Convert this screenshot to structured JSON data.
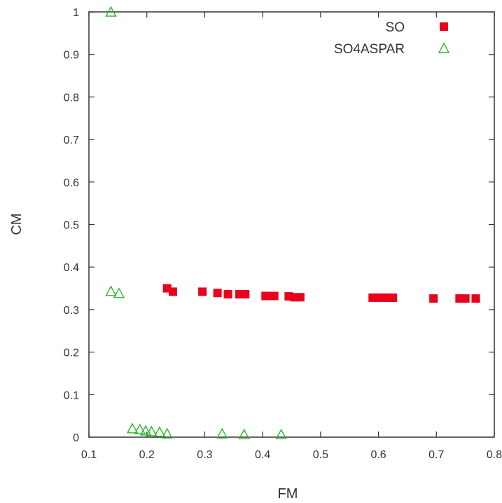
{
  "chart_data": {
    "type": "scatter",
    "xlabel": "FM",
    "ylabel": "CM",
    "xlim": [
      0.1,
      0.8
    ],
    "ylim": [
      0,
      1
    ],
    "x_ticks": [
      "0.1",
      "0.2",
      "0.3",
      "0.4",
      "0.5",
      "0.6",
      "0.7",
      "0.8"
    ],
    "y_ticks": [
      "0",
      "0.1",
      "0.2",
      "0.3",
      "0.4",
      "0.5",
      "0.6",
      "0.7",
      "0.8",
      "0.9",
      "1"
    ],
    "grid": false,
    "legend_position": "top-right",
    "series": [
      {
        "name": "SO",
        "marker": "filled-square",
        "color": "#e8001c",
        "points": [
          [
            0.235,
            0.35
          ],
          [
            0.245,
            0.342
          ],
          [
            0.296,
            0.342
          ],
          [
            0.322,
            0.339
          ],
          [
            0.34,
            0.336
          ],
          [
            0.36,
            0.336
          ],
          [
            0.37,
            0.336
          ],
          [
            0.405,
            0.332
          ],
          [
            0.41,
            0.332
          ],
          [
            0.42,
            0.332
          ],
          [
            0.445,
            0.331
          ],
          [
            0.455,
            0.329
          ],
          [
            0.465,
            0.329
          ],
          [
            0.59,
            0.328
          ],
          [
            0.6,
            0.328
          ],
          [
            0.61,
            0.328
          ],
          [
            0.615,
            0.328
          ],
          [
            0.625,
            0.328
          ],
          [
            0.695,
            0.326
          ],
          [
            0.74,
            0.326
          ],
          [
            0.75,
            0.326
          ],
          [
            0.768,
            0.326
          ]
        ]
      },
      {
        "name": "SO4ASPAR",
        "marker": "open-triangle",
        "color": "#2fb52f",
        "points": [
          [
            0.138,
            1.0
          ],
          [
            0.138,
            0.343
          ],
          [
            0.152,
            0.338
          ],
          [
            0.175,
            0.02
          ],
          [
            0.188,
            0.018
          ],
          [
            0.198,
            0.015
          ],
          [
            0.208,
            0.013
          ],
          [
            0.222,
            0.012
          ],
          [
            0.235,
            0.008
          ],
          [
            0.33,
            0.008
          ],
          [
            0.368,
            0.006
          ],
          [
            0.432,
            0.006
          ]
        ]
      }
    ]
  }
}
